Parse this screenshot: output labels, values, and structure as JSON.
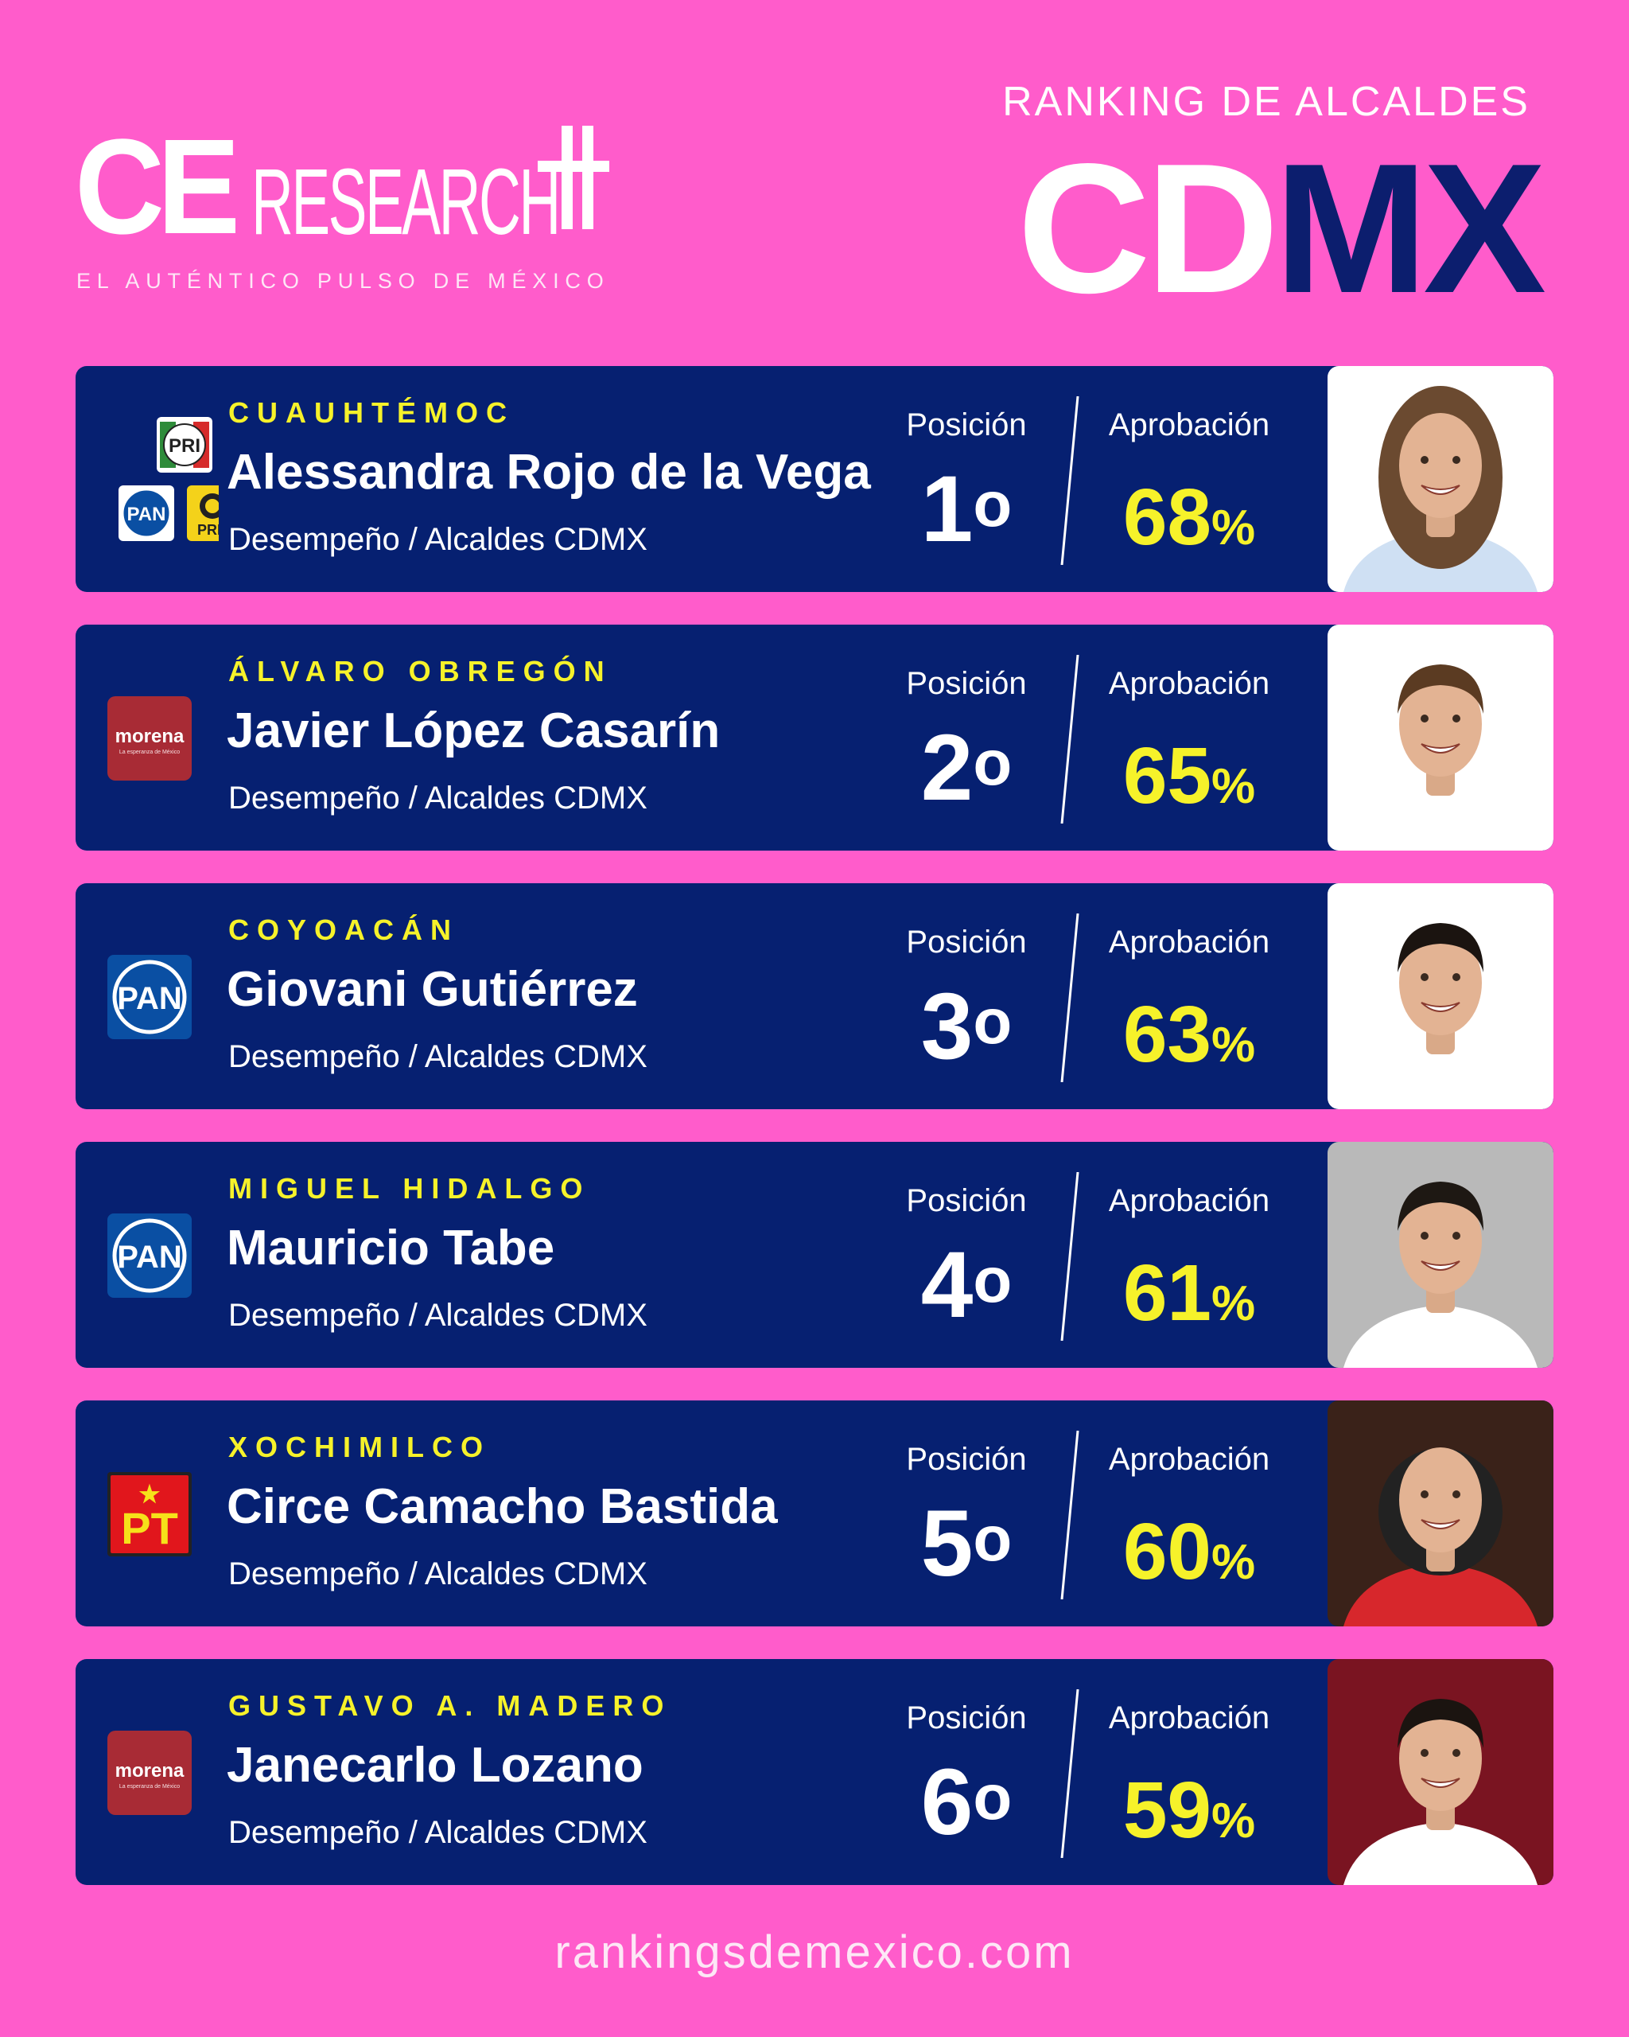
{
  "brand": {
    "logo_ce": "CE",
    "logo_research": "RESEARCH",
    "tagline": "EL AUTÉNTICO PULSO DE MÉXICO"
  },
  "header": {
    "ranking_title": "RANKING DE ALCALDES",
    "city_part1": "CD",
    "city_part2": "MX"
  },
  "colors": {
    "background": "#ff5ccb",
    "card": "#062071",
    "accent_yellow": "#f6f22a",
    "dark_blue": "#0c1e6e"
  },
  "rankings": [
    {
      "borough": "CUAUHTÉMOC",
      "name": "Alessandra Rojo de la Vega",
      "subtitle": "Desempeño / Alcaldes CDMX",
      "position_label": "Posición",
      "position_number": "1",
      "position_suffix": "o",
      "approval_label": "Aprobación",
      "approval_value": "68",
      "approval_unit": "%",
      "party_logos": [
        "PRI",
        "PAN",
        "PRD"
      ],
      "photo_icon": "portrait-woman"
    },
    {
      "borough": "ÁLVARO OBREGÓN",
      "name": "Javier López Casarín",
      "subtitle": "Desempeño / Alcaldes CDMX",
      "position_label": "Posición",
      "position_number": "2",
      "position_suffix": "o",
      "approval_label": "Aprobación",
      "approval_value": "65",
      "approval_unit": "%",
      "party_logos": [
        "morena"
      ],
      "photo_icon": "portrait-man"
    },
    {
      "borough": "COYOACÁN",
      "name": "Giovani Gutiérrez",
      "subtitle": "Desempeño / Alcaldes CDMX",
      "position_label": "Posición",
      "position_number": "3",
      "position_suffix": "o",
      "approval_label": "Aprobación",
      "approval_value": "63",
      "approval_unit": "%",
      "party_logos": [
        "PAN"
      ],
      "photo_icon": "portrait-man"
    },
    {
      "borough": "MIGUEL HIDALGO",
      "name": "Mauricio Tabe",
      "subtitle": "Desempeño / Alcaldes CDMX",
      "position_label": "Posición",
      "position_number": "4",
      "position_suffix": "o",
      "approval_label": "Aprobación",
      "approval_value": "61",
      "approval_unit": "%",
      "party_logos": [
        "PAN"
      ],
      "photo_icon": "portrait-man"
    },
    {
      "borough": "XOCHIMILCO",
      "name": "Circe Camacho Bastida",
      "subtitle": "Desempeño / Alcaldes CDMX",
      "position_label": "Posición",
      "position_number": "5",
      "position_suffix": "o",
      "approval_label": "Aprobación",
      "approval_value": "60",
      "approval_unit": "%",
      "party_logos": [
        "PT"
      ],
      "photo_icon": "portrait-woman"
    },
    {
      "borough": "GUSTAVO A. MADERO",
      "name": "Janecarlo Lozano",
      "subtitle": "Desempeño / Alcaldes CDMX",
      "position_label": "Posición",
      "position_number": "6",
      "position_suffix": "o",
      "approval_label": "Aprobación",
      "approval_value": "59",
      "approval_unit": "%",
      "party_logos": [
        "morena"
      ],
      "photo_icon": "portrait-man"
    }
  ],
  "logo_text": {
    "pri": "PRI",
    "pan": "PAN",
    "prd": "PRD",
    "morena": "morena",
    "morena_sub": "La esperanza de México",
    "pt": "PT"
  },
  "footer": {
    "url": "rankingsdemexico.com"
  }
}
